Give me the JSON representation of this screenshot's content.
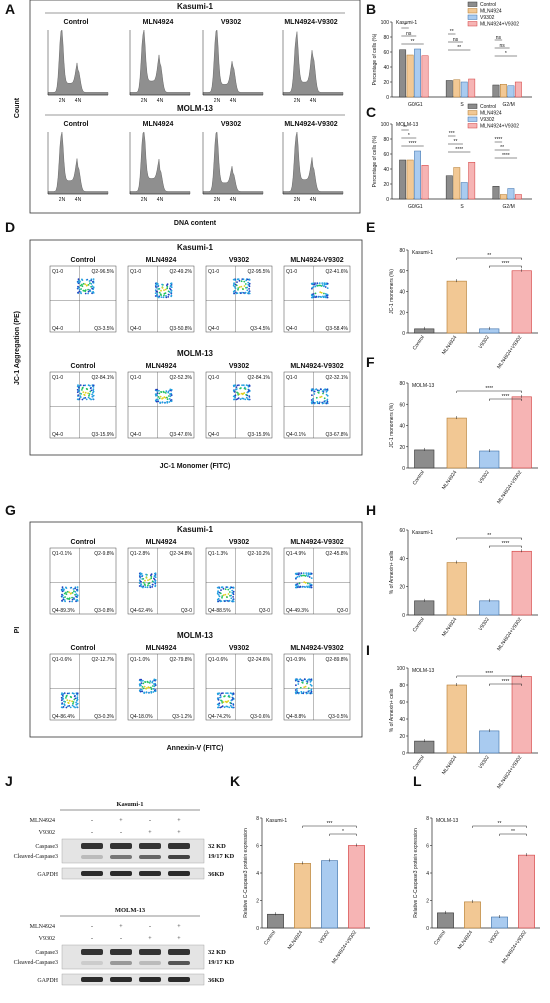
{
  "panel_letters": {
    "A": "A",
    "B": "B",
    "C": "C",
    "D": "D",
    "E": "E",
    "F": "F",
    "G": "G",
    "H": "H",
    "I": "I",
    "J": "J",
    "K": "K",
    "L": "L"
  },
  "groups": [
    "Control",
    "MLN4924",
    "V9302",
    "MLN4924-V9302"
  ],
  "cell_lines": {
    "k": "Kasumi-1",
    "m": "MOLM-13"
  },
  "colors": {
    "control": "#8c8c8c",
    "mln": "#f2c894",
    "v": "#a9cbf0",
    "combo": "#f6b4b4",
    "hist": "#8f8f8f"
  },
  "panelA": {
    "ylabel": "Count",
    "xlabel": "DNA content",
    "tick2n": "2N",
    "tick4n": "4N"
  },
  "panelD": {
    "ylabel": "JC-1 Aggregation (PE)",
    "xlabel": "JC-1 Monomer (FITC)",
    "quads_k": [
      [
        "Q1-0",
        "Q2-96.5%",
        "Q4-0",
        "Q3-3.5%"
      ],
      [
        "Q1-0",
        "Q2-49.2%",
        "Q4-0",
        "Q3-50.8%"
      ],
      [
        "Q1-0",
        "Q2-95.5%",
        "Q4-0",
        "Q3-4.5%"
      ],
      [
        "Q1-0",
        "Q2-41.6%",
        "Q4-0",
        "Q3-58.4%"
      ]
    ],
    "quads_m": [
      [
        "Q1-0",
        "Q2-84.1%",
        "Q4-0",
        "Q3-15.9%"
      ],
      [
        "Q1-0",
        "Q2-52.3%",
        "Q4-0",
        "Q3-47.6%"
      ],
      [
        "Q1-0",
        "Q2-84.1%",
        "Q4-0",
        "Q3-15.9%"
      ],
      [
        "Q1-0",
        "Q2-32.1%",
        "Q4-0.1%",
        "Q3-67.8%"
      ]
    ]
  },
  "panelG": {
    "ylabel": "PI",
    "xlabel": "Annexin-V (FITC)",
    "quads_k": [
      [
        "Q1-0.1%",
        "Q2-9.8%",
        "Q4-89.3%",
        "Q3-0.8%"
      ],
      [
        "Q1-2.8%",
        "Q2-34.8%",
        "Q4-62.4%",
        "Q3-0"
      ],
      [
        "Q1-1.3%",
        "Q2-10.2%",
        "Q4-88.5%",
        "Q3-0"
      ],
      [
        "Q1-4.9%",
        "Q2-45.8%",
        "Q4-49.3%",
        "Q3-0"
      ]
    ],
    "quads_m": [
      [
        "Q1-0.6%",
        "Q2-12.7%",
        "Q4-86.4%",
        "Q3-0.3%"
      ],
      [
        "Q1-1.0%",
        "Q2-79.8%",
        "Q4-18.0%",
        "Q3-1.2%"
      ],
      [
        "Q1-0.6%",
        "Q2-24.6%",
        "Q4-74.2%",
        "Q3-0.6%"
      ],
      [
        "Q1-0.9%",
        "Q2-89.8%",
        "Q4-8.8%",
        "Q3-0.5%"
      ]
    ]
  },
  "panelJ": {
    "mln_label": "MLN4924",
    "v_label": "V9302",
    "caspase": "Caspase3",
    "cleaved": "Cleaved-Caspase3",
    "gapdh": "GAPDH",
    "kd_32": "32 KD",
    "kd_1917": "19/17 KD",
    "kd_36": "36KD",
    "mln_signs": [
      "-",
      "+",
      "-",
      "+"
    ],
    "v_signs": [
      "-",
      "-",
      "+",
      "+"
    ]
  },
  "chart_data": [
    {
      "panel": "B",
      "type": "bar",
      "title": "Kasumi-1",
      "ylabel": "Percentage of cells (%)",
      "categories": [
        "G0/G1",
        "S",
        "G2/M"
      ],
      "ylim": [
        0,
        100
      ],
      "yticks": [
        "0",
        "20",
        "40",
        "60",
        "80",
        "100"
      ],
      "series": [
        {
          "name": "Control",
          "values": [
            63,
            22,
            16
          ]
        },
        {
          "name": "MLN4924",
          "values": [
            56,
            23,
            17
          ]
        },
        {
          "name": "V9302",
          "values": [
            64,
            20,
            15
          ]
        },
        {
          "name": "MLN4924+V9302",
          "values": [
            55,
            24,
            20
          ]
        }
      ],
      "annotations": [
        "*",
        "ns",
        "**",
        "**",
        "ns",
        "**",
        "ns",
        "ns",
        "*"
      ]
    },
    {
      "panel": "C",
      "type": "bar",
      "title": "MOLM-13",
      "ylabel": "Percentage of cells (%)",
      "categories": [
        "G0/G1",
        "S",
        "G2/M"
      ],
      "ylim": [
        0,
        100
      ],
      "yticks": [
        "0",
        "20",
        "40",
        "60",
        "80",
        "100"
      ],
      "series": [
        {
          "name": "Control",
          "values": [
            52,
            31,
            17
          ]
        },
        {
          "name": "MLN4924",
          "values": [
            52,
            42,
            6
          ]
        },
        {
          "name": "V9302",
          "values": [
            64,
            22,
            14
          ]
        },
        {
          "name": "MLN4924+V9302",
          "values": [
            45,
            49,
            6
          ]
        }
      ],
      "annotations": [
        "**",
        "*",
        "****",
        "***",
        "**",
        "****",
        "****",
        "**",
        "****"
      ]
    },
    {
      "panel": "E",
      "type": "bar",
      "title": "Kasumi-1",
      "ylabel": "JC-1 monomers (%)",
      "categories": [
        "Control",
        "MLN4924",
        "V9302",
        "MLN4924+V9302"
      ],
      "ylim": [
        0,
        80
      ],
      "yticks": [
        "0",
        "20",
        "40",
        "60",
        "80"
      ],
      "values": [
        4,
        50,
        4,
        60
      ],
      "annotations": [
        "**",
        "****"
      ]
    },
    {
      "panel": "F",
      "type": "bar",
      "title": "MOLM-13",
      "ylabel": "JC-1 monomers (%)",
      "categories": [
        "Control",
        "MLN4924",
        "V9302",
        "MLN4924+V9302"
      ],
      "ylim": [
        0,
        80
      ],
      "yticks": [
        "0",
        "20",
        "40",
        "60",
        "80"
      ],
      "values": [
        17,
        47,
        16,
        67
      ],
      "annotations": [
        "****",
        "****"
      ]
    },
    {
      "panel": "H",
      "type": "bar",
      "title": "Kasumi-1",
      "ylabel": "% of Annexin+ cells",
      "categories": [
        "Control",
        "MLN4924",
        "V9302",
        "MLN4924+V9302"
      ],
      "ylim": [
        0,
        60
      ],
      "yticks": [
        "0",
        "20",
        "40",
        "60"
      ],
      "values": [
        10,
        37,
        10,
        45
      ],
      "annotations": [
        "**",
        "****"
      ]
    },
    {
      "panel": "I",
      "type": "bar",
      "title": "MOLM-13",
      "ylabel": "% of Annexin+ cells",
      "categories": [
        "Control",
        "MLN4924",
        "V9302",
        "MLN4924+V9302"
      ],
      "ylim": [
        0,
        100
      ],
      "yticks": [
        "0",
        "20",
        "40",
        "60",
        "80",
        "100"
      ],
      "values": [
        14,
        80,
        26,
        90
      ],
      "annotations": [
        "****",
        "****"
      ]
    },
    {
      "panel": "K",
      "type": "bar",
      "title": "Kasumi-1",
      "ylabel": "Relative C-Caspase3 protein expression",
      "categories": [
        "Control",
        "MLN4924",
        "V9302",
        "MLN4924+V9302"
      ],
      "ylim": [
        0,
        8
      ],
      "yticks": [
        "0",
        "2",
        "4",
        "6",
        "8"
      ],
      "values": [
        1,
        4.7,
        4.9,
        6
      ],
      "annotations": [
        "***",
        "*"
      ]
    },
    {
      "panel": "L",
      "type": "bar",
      "title": "MOLM-13",
      "ylabel": "Relative C-Caspase3 protein expression",
      "categories": [
        "Control",
        "MLN4924",
        "V9302",
        "MLN4924+V9302"
      ],
      "ylim": [
        0,
        8
      ],
      "yticks": [
        "0",
        "2",
        "4",
        "6",
        "8"
      ],
      "values": [
        1.1,
        1.9,
        0.8,
        5.3
      ],
      "annotations": [
        "**",
        "**"
      ]
    }
  ]
}
